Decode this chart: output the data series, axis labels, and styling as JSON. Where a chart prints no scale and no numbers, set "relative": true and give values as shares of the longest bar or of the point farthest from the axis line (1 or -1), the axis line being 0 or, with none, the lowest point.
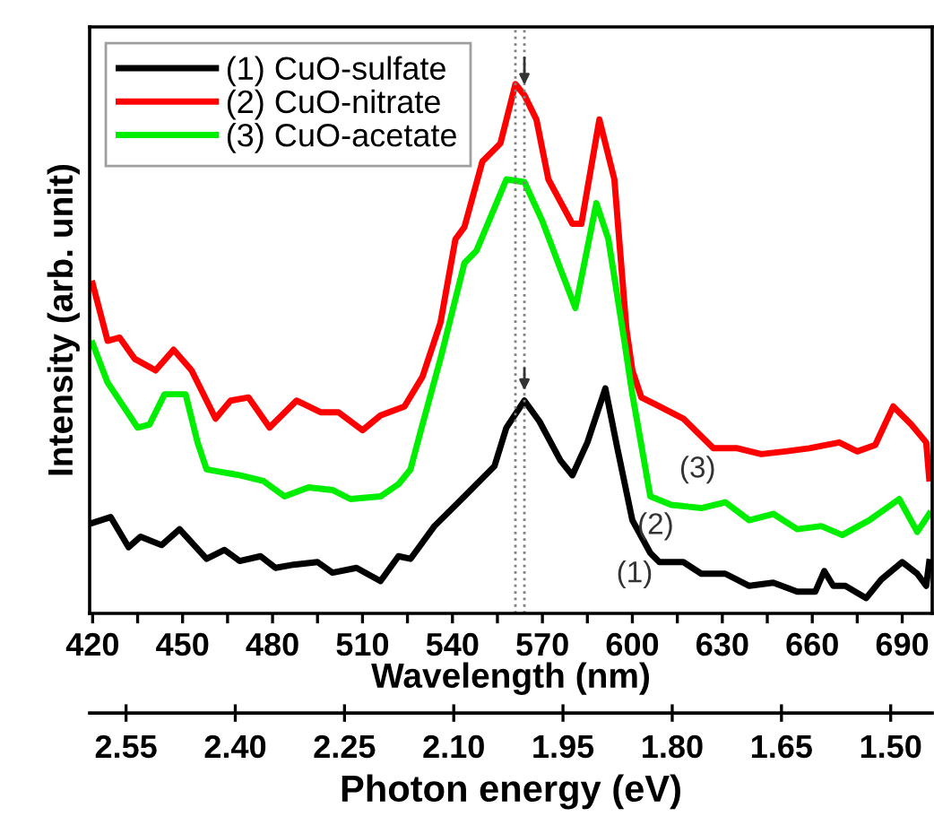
{
  "chart_data": {
    "type": "line",
    "relative": true,
    "xlabel": "Wavelength (nm)",
    "ylabel": "Intensity (arb. unit)",
    "x2label": "Photon energy (eV)",
    "xlim": [
      419,
      700
    ],
    "xticks": [
      420,
      {
        "value": 435,
        "label": null
      },
      450,
      {
        "value": 465,
        "label": null
      },
      480,
      {
        "value": 495,
        "label": null
      },
      510,
      {
        "value": 525,
        "label": null
      },
      540,
      {
        "value": 555,
        "label": null
      },
      570,
      {
        "value": 585,
        "label": null
      },
      600,
      {
        "value": 615,
        "label": null
      },
      630,
      {
        "value": 645,
        "label": null
      },
      660,
      {
        "value": 675,
        "label": null
      },
      690
    ],
    "x2lim": [
      2.6,
      1.443
    ],
    "x2ticks": [
      {
        "value": 2.55,
        "label": "2.55"
      },
      {
        "value": 2.4,
        "label": "2.40"
      },
      {
        "value": 2.25,
        "label": "2.25"
      },
      {
        "value": 2.1,
        "label": "2.10"
      },
      {
        "value": 1.95,
        "label": "1.95"
      },
      {
        "value": 1.8,
        "label": "1.80"
      },
      {
        "value": 1.65,
        "label": "1.65"
      },
      {
        "value": 1.5,
        "label": "1.50"
      }
    ],
    "legend": "top left",
    "grid": false,
    "line_style": "solid",
    "series": [
      {
        "name": "(1) CuO-sulfate",
        "color": "#000000",
        "x": [
          420,
          426,
          432,
          436,
          443,
          449,
          458,
          464,
          469,
          476,
          481,
          487,
          495,
          500,
          508,
          516,
          522,
          526,
          534,
          544,
          554,
          558,
          564,
          569,
          576,
          580,
          585,
          591,
          595,
          600,
          606,
          609,
          617,
          623,
          631,
          639,
          647,
          655,
          661,
          664,
          667,
          671,
          678,
          683,
          690,
          695,
          698,
          699
        ],
        "values": [
          0.171,
          0.182,
          0.125,
          0.145,
          0.129,
          0.159,
          0.103,
          0.12,
          0.099,
          0.108,
          0.086,
          0.092,
          0.097,
          0.077,
          0.086,
          0.061,
          0.108,
          0.103,
          0.165,
          0.221,
          0.278,
          0.351,
          0.402,
          0.363,
          0.289,
          0.261,
          0.323,
          0.425,
          0.312,
          0.176,
          0.114,
          0.097,
          0.097,
          0.075,
          0.075,
          0.052,
          0.058,
          0.041,
          0.041,
          0.08,
          0.052,
          0.052,
          0.029,
          0.064,
          0.097,
          0.075,
          0.052,
          0.097
        ]
      },
      {
        "name": "(2) CuO-nitrate",
        "color": "#ff0000",
        "x": [
          420,
          425,
          429,
          434,
          441,
          447,
          453,
          461,
          466,
          472,
          479,
          488,
          496,
          502,
          510,
          516,
          524,
          530,
          536,
          541,
          544,
          550,
          556,
          561,
          564,
          568,
          572,
          580,
          583,
          589,
          594,
          598,
          600,
          603,
          609,
          617,
          627,
          635,
          643,
          651,
          659,
          669,
          675,
          681,
          687,
          693,
          698,
          699
        ],
        "values": [
          0.623,
          0.515,
          0.521,
          0.481,
          0.459,
          0.498,
          0.459,
          0.368,
          0.402,
          0.408,
          0.351,
          0.402,
          0.38,
          0.38,
          0.346,
          0.374,
          0.391,
          0.447,
          0.549,
          0.707,
          0.73,
          0.854,
          0.888,
          1.0,
          0.979,
          0.933,
          0.82,
          0.736,
          0.736,
          0.933,
          0.82,
          0.538,
          0.459,
          0.408,
          0.391,
          0.368,
          0.312,
          0.312,
          0.301,
          0.306,
          0.312,
          0.323,
          0.306,
          0.318,
          0.391,
          0.357,
          0.323,
          0.255
        ]
      },
      {
        "name": "(3) CuO-acetate",
        "color": "#00ee00",
        "x": [
          420,
          425,
          435,
          439,
          444,
          451,
          455,
          458,
          469,
          477,
          484,
          492,
          500,
          506,
          516,
          522,
          526,
          530,
          536,
          544,
          548,
          558,
          564,
          570,
          576,
          581,
          588,
          592,
          597,
          600,
          606,
          613,
          623,
          631,
          639,
          647,
          655,
          663,
          670,
          679,
          689,
          695,
          699
        ],
        "values": [
          0.51,
          0.436,
          0.351,
          0.357,
          0.414,
          0.414,
          0.323,
          0.272,
          0.261,
          0.25,
          0.221,
          0.238,
          0.233,
          0.216,
          0.221,
          0.244,
          0.272,
          0.357,
          0.481,
          0.662,
          0.685,
          0.82,
          0.815,
          0.741,
          0.651,
          0.577,
          0.775,
          0.707,
          0.527,
          0.414,
          0.221,
          0.205,
          0.199,
          0.21,
          0.176,
          0.188,
          0.159,
          0.165,
          0.148,
          0.176,
          0.216,
          0.154,
          0.188
        ]
      }
    ],
    "ref_lines": [
      {
        "axis": "x",
        "value": 561,
        "color": "#808080",
        "line_style": "dotted"
      },
      {
        "axis": "x",
        "value": 564,
        "color": "#808080",
        "line_style": "dotted"
      }
    ],
    "annotations": [
      {
        "text": "(1)",
        "x": 606,
        "y": 0.114
      },
      {
        "text": "(2)",
        "x": 613,
        "y": 0.205
      },
      {
        "text": "(3)",
        "x": 627,
        "y": 0.312
      }
    ]
  }
}
